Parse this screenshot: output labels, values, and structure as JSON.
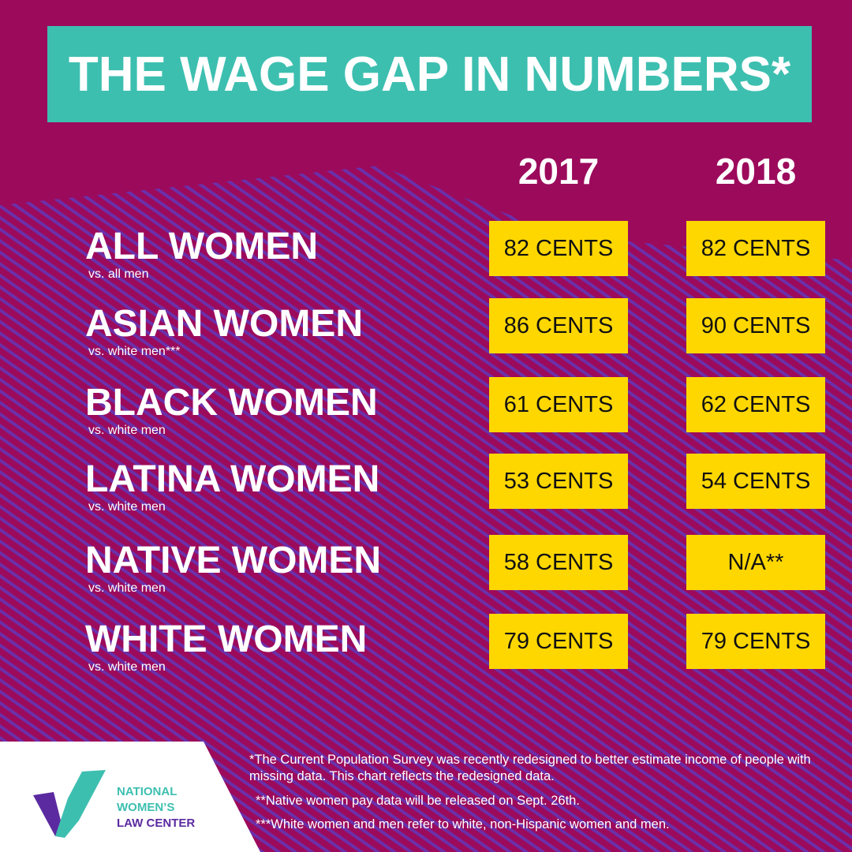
{
  "header": {
    "title": "THE WAGE GAP IN NUMBERS*"
  },
  "table": {
    "columns": [
      "2017",
      "2018"
    ],
    "rows": [
      {
        "label": "ALL WOMEN",
        "sublabel": "vs. all men",
        "cells": [
          "82 CENTS",
          "82 CENTS"
        ]
      },
      {
        "label": "ASIAN WOMEN",
        "sublabel": "vs. white men***",
        "cells": [
          "86 CENTS",
          "90 CENTS"
        ]
      },
      {
        "label": "BLACK WOMEN",
        "sublabel": "vs. white men",
        "cells": [
          "61 CENTS",
          "62 CENTS"
        ]
      },
      {
        "label": "LATINA WOMEN",
        "sublabel": "vs. white men",
        "cells": [
          "53 CENTS",
          "54 CENTS"
        ]
      },
      {
        "label": "NATIVE WOMEN",
        "sublabel": "vs. white men",
        "cells": [
          "58 CENTS",
          "N/A**"
        ]
      },
      {
        "label": "WHITE WOMEN",
        "sublabel": "vs. white men",
        "cells": [
          "79 CENTS",
          "79 CENTS"
        ]
      }
    ]
  },
  "footnotes": [
    "*The Current Population Survey was recently redesigned to better estimate income of people with missing data. This chart reflects the redesigned data.",
    "**Native women pay data will be released on Sept. 26th.",
    "***White women and men refer to white, non-Hispanic women and men."
  ],
  "logo": {
    "lines": [
      "NATIONAL",
      "WOMEN’S",
      "LAW CENTER"
    ]
  }
}
